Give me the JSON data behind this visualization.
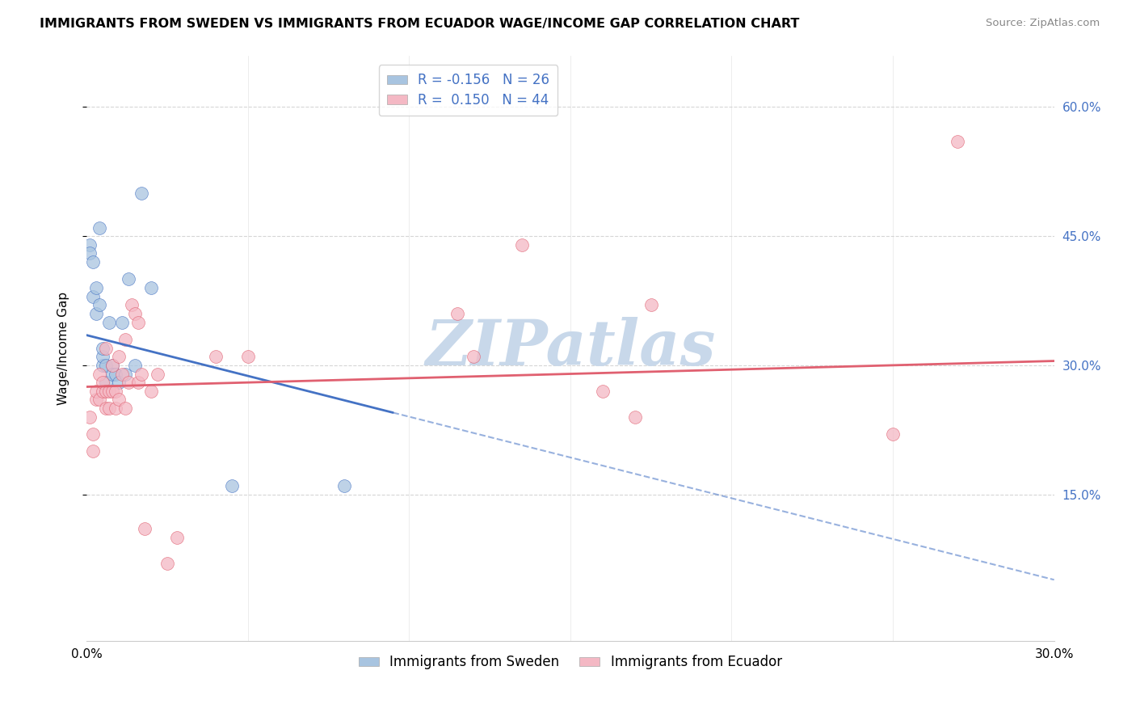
{
  "title": "IMMIGRANTS FROM SWEDEN VS IMMIGRANTS FROM ECUADOR WAGE/INCOME GAP CORRELATION CHART",
  "source": "Source: ZipAtlas.com",
  "xlabel": "",
  "ylabel": "Wage/Income Gap",
  "xlim": [
    0.0,
    0.3
  ],
  "ylim": [
    -0.02,
    0.66
  ],
  "yticks": [
    0.15,
    0.3,
    0.45,
    0.6
  ],
  "ytick_labels": [
    "15.0%",
    "30.0%",
    "45.0%",
    "60.0%"
  ],
  "xticks": [
    0.0,
    0.05,
    0.1,
    0.15,
    0.2,
    0.25,
    0.3
  ],
  "xtick_labels": [
    "0.0%",
    "",
    "",
    "",
    "",
    "",
    "30.0%"
  ],
  "sweden_color": "#a8c4e0",
  "ecuador_color": "#f4b8c4",
  "sweden_line_color": "#4472c4",
  "ecuador_line_color": "#e06070",
  "sweden_R": -0.156,
  "sweden_N": 26,
  "ecuador_R": 0.15,
  "ecuador_N": 44,
  "watermark": "ZIPatlas",
  "watermark_color": "#c8d8ea",
  "background_color": "#ffffff",
  "sweden_line_x0": 0.0,
  "sweden_line_y0": 0.335,
  "sweden_line_x1": 0.095,
  "sweden_line_y1": 0.245,
  "ecuador_line_x0": 0.0,
  "ecuador_line_y0": 0.275,
  "ecuador_line_x1": 0.3,
  "ecuador_line_y1": 0.305,
  "sweden_scatter_x": [
    0.001,
    0.001,
    0.002,
    0.002,
    0.003,
    0.003,
    0.004,
    0.004,
    0.005,
    0.005,
    0.005,
    0.006,
    0.006,
    0.007,
    0.008,
    0.008,
    0.009,
    0.01,
    0.011,
    0.012,
    0.013,
    0.015,
    0.017,
    0.02,
    0.045,
    0.08
  ],
  "sweden_scatter_y": [
    0.44,
    0.43,
    0.38,
    0.42,
    0.36,
    0.39,
    0.46,
    0.37,
    0.3,
    0.31,
    0.32,
    0.28,
    0.3,
    0.35,
    0.3,
    0.29,
    0.29,
    0.28,
    0.35,
    0.29,
    0.4,
    0.3,
    0.5,
    0.39,
    0.16,
    0.16
  ],
  "ecuador_scatter_x": [
    0.001,
    0.002,
    0.002,
    0.003,
    0.003,
    0.004,
    0.004,
    0.005,
    0.005,
    0.006,
    0.006,
    0.006,
    0.007,
    0.007,
    0.008,
    0.008,
    0.009,
    0.009,
    0.01,
    0.01,
    0.011,
    0.012,
    0.012,
    0.013,
    0.014,
    0.015,
    0.016,
    0.016,
    0.017,
    0.018,
    0.02,
    0.022,
    0.025,
    0.028,
    0.04,
    0.05,
    0.115,
    0.12,
    0.135,
    0.16,
    0.17,
    0.175,
    0.25,
    0.27
  ],
  "ecuador_scatter_y": [
    0.24,
    0.2,
    0.22,
    0.26,
    0.27,
    0.26,
    0.29,
    0.27,
    0.28,
    0.25,
    0.27,
    0.32,
    0.25,
    0.27,
    0.27,
    0.3,
    0.25,
    0.27,
    0.26,
    0.31,
    0.29,
    0.25,
    0.33,
    0.28,
    0.37,
    0.36,
    0.28,
    0.35,
    0.29,
    0.11,
    0.27,
    0.29,
    0.07,
    0.1,
    0.31,
    0.31,
    0.36,
    0.31,
    0.44,
    0.27,
    0.24,
    0.37,
    0.22,
    0.56
  ]
}
